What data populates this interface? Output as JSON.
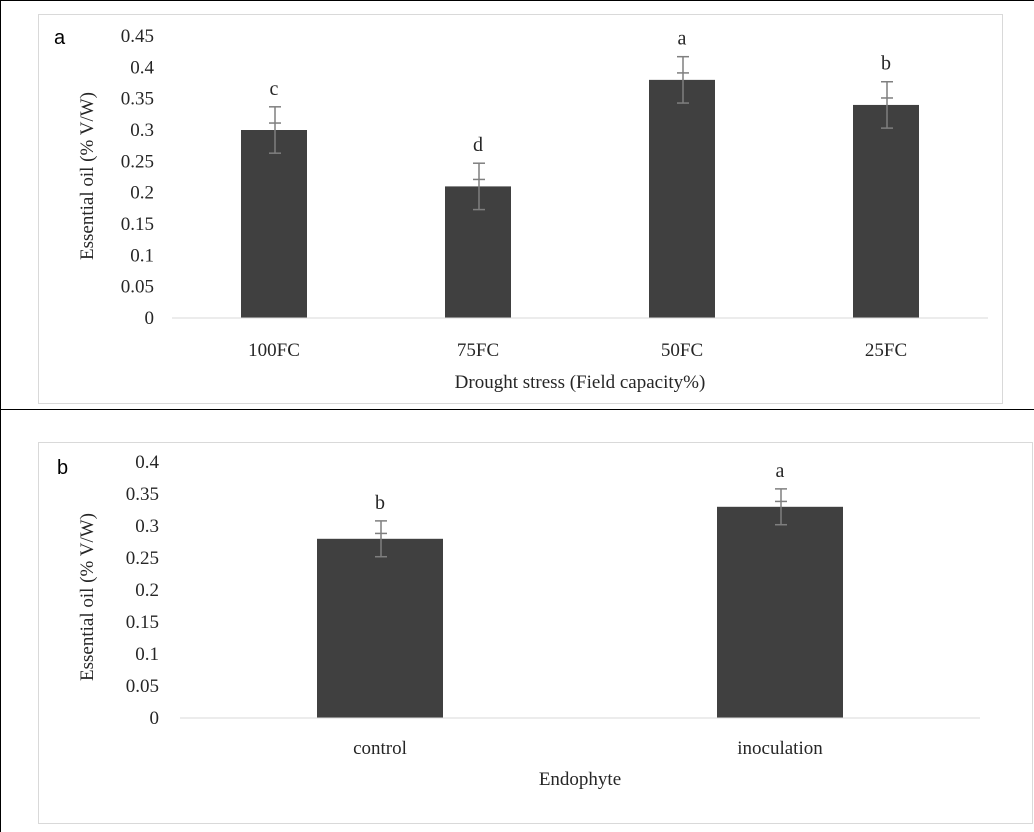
{
  "chart_data": [
    {
      "type": "bar",
      "panel_label": "a",
      "title": "",
      "xlabel": "Drought stress (Field capacity%)",
      "ylabel": "Essential oil (% V/W)",
      "categories": [
        "100FC",
        "75FC",
        "50FC",
        "25FC"
      ],
      "values": [
        0.3,
        0.21,
        0.38,
        0.34
      ],
      "error": [
        0.037,
        0.037,
        0.037,
        0.037
      ],
      "letters": [
        "c",
        "d",
        "a",
        "b"
      ],
      "ylim": [
        0,
        0.45
      ],
      "yticks": [
        "0",
        "0.05",
        "0.1",
        "0.15",
        "0.2",
        "0.25",
        "0.3",
        "0.35",
        "0.4",
        "0.45"
      ],
      "grid": false,
      "bar_color": "#404040"
    },
    {
      "type": "bar",
      "panel_label": "b",
      "title": "",
      "xlabel": "Endophyte",
      "ylabel": "Essential oil (% V/W)",
      "categories": [
        "control",
        "inoculation"
      ],
      "values": [
        0.28,
        0.33
      ],
      "error": [
        0.028,
        0.028
      ],
      "letters": [
        "b",
        "a"
      ],
      "ylim": [
        0,
        0.4
      ],
      "yticks": [
        "0",
        "0.05",
        "0.1",
        "0.15",
        "0.2",
        "0.25",
        "0.3",
        "0.35",
        "0.4"
      ],
      "grid": false,
      "bar_color": "#404040"
    }
  ]
}
